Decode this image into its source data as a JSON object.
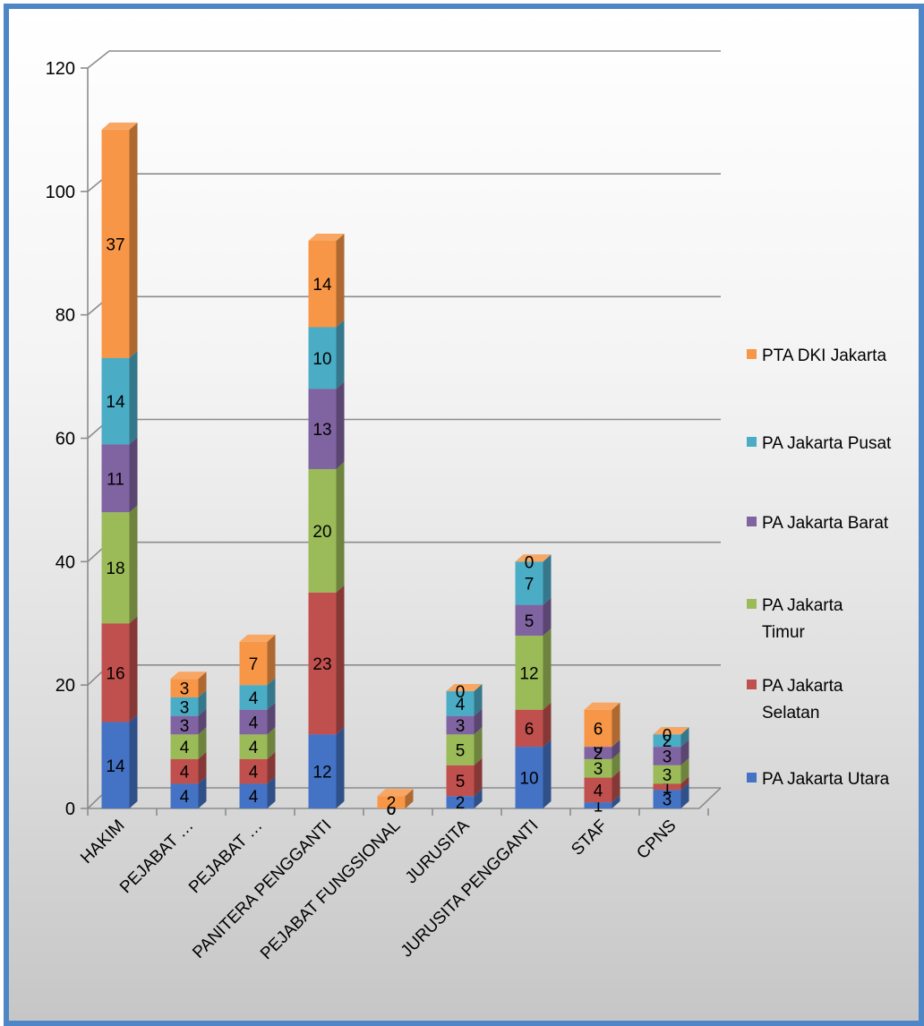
{
  "chart_data": {
    "type": "bar",
    "stacked": true,
    "three_d": true,
    "categories": [
      "HAKIM",
      "PEJABAT …",
      "PEJABAT …",
      "PANITERA PENGGANTI",
      "PEJABAT FUNGSIONAL",
      "JURUSITA",
      "JURUSITA PENGGANTI",
      "STAF",
      "CPNS"
    ],
    "series": [
      {
        "name": "PA Jakarta Utara",
        "color": "#4472c4",
        "values": [
          14,
          4,
          4,
          12,
          0,
          2,
          10,
          1,
          3
        ]
      },
      {
        "name": "PA Jakarta Selatan",
        "color": "#c0504d",
        "values": [
          16,
          4,
          4,
          23,
          0,
          5,
          6,
          4,
          1
        ]
      },
      {
        "name": "PA Jakarta Timur",
        "color": "#9bbb59",
        "values": [
          18,
          4,
          4,
          20,
          0,
          5,
          12,
          3,
          3
        ]
      },
      {
        "name": "PA Jakarta Barat",
        "color": "#8064a2",
        "values": [
          11,
          3,
          4,
          13,
          0,
          3,
          5,
          2,
          3
        ]
      },
      {
        "name": "PA Jakarta Pusat",
        "color": "#4bacc6",
        "values": [
          14,
          3,
          4,
          10,
          0,
          4,
          7,
          0,
          2
        ]
      },
      {
        "name": "PTA DKI Jakarta",
        "color": "#f79646",
        "values": [
          37,
          3,
          7,
          14,
          2,
          0,
          0,
          6,
          0
        ]
      }
    ],
    "legend_labels": [
      [
        "PTA DKI Jakarta"
      ],
      [
        "PA Jakarta Pusat"
      ],
      [
        "PA Jakarta Barat"
      ],
      [
        "PA Jakarta",
        "Timur"
      ],
      [
        "PA Jakarta",
        "Selatan"
      ],
      [
        "PA Jakarta Utara"
      ]
    ],
    "yticks": [
      "0",
      "20",
      "40",
      "60",
      "80",
      "100",
      "120"
    ],
    "ylim": [
      0,
      120
    ],
    "grid": true,
    "legend_position": "right"
  }
}
